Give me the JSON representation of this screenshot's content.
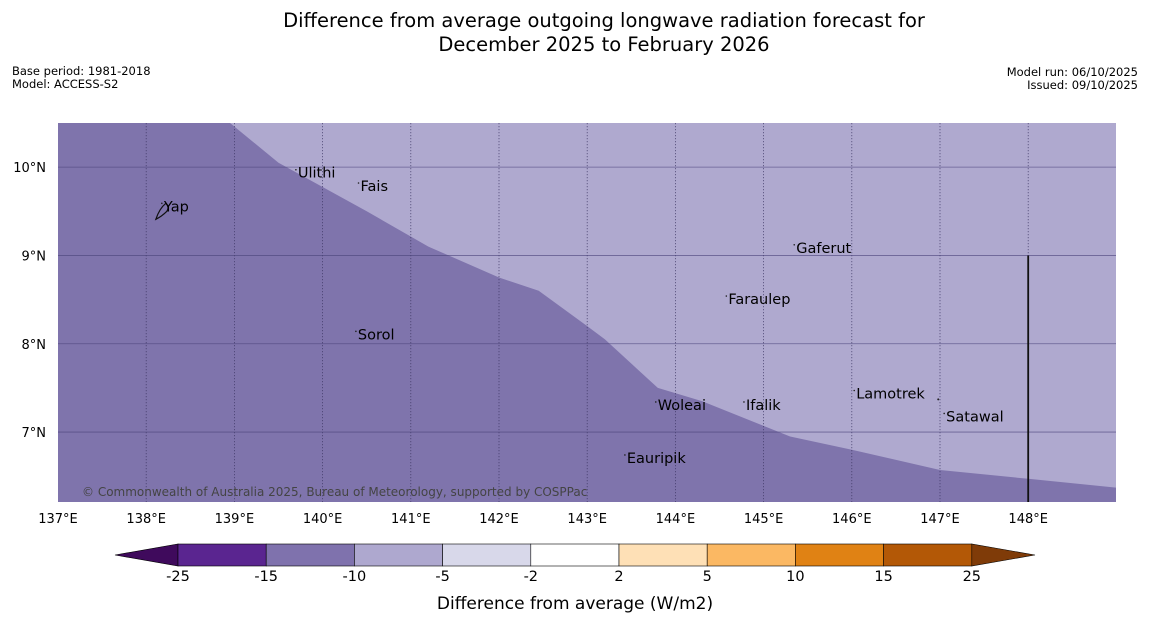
{
  "title_line1": "Difference from average outgoing longwave radiation forecast for",
  "title_line2": "December 2025 to February 2026",
  "base_period": "Base period: 1981-2018",
  "model": "Model: ACCESS-S2",
  "model_run": "Model run: 06/10/2025",
  "issued": "Issued: 09/10/2025",
  "copyright": "© Commonwealth of Australia 2025, Bureau of Meteorology, supported by COSPPac",
  "lon_labels": [
    "137°E",
    "138°E",
    "139°E",
    "140°E",
    "141°E",
    "142°E",
    "143°E",
    "144°E",
    "145°E",
    "146°E",
    "147°E",
    "148°E"
  ],
  "lon_values": [
    137,
    138,
    139,
    140,
    141,
    142,
    143,
    144,
    145,
    146,
    147,
    148
  ],
  "lat_labels": [
    "10°N",
    "9°N",
    "8°N",
    "7°N"
  ],
  "lat_values": [
    10,
    9,
    8,
    7
  ],
  "places": [
    {
      "name": "Ulithi",
      "lon": 139.72,
      "lat": 9.88
    },
    {
      "name": "Fais",
      "lon": 140.43,
      "lat": 9.73
    },
    {
      "name": "Yap",
      "lon": 138.2,
      "lat": 9.5
    },
    {
      "name": "Gaferut",
      "lon": 145.37,
      "lat": 9.03
    },
    {
      "name": "Faraulep",
      "lon": 144.6,
      "lat": 8.45
    },
    {
      "name": "Sorol",
      "lon": 140.4,
      "lat": 8.05
    },
    {
      "name": "Lamotrek",
      "lon": 146.05,
      "lat": 7.38
    },
    {
      "name": "Woleai",
      "lon": 143.8,
      "lat": 7.25
    },
    {
      "name": "Ifalik",
      "lon": 144.8,
      "lat": 7.25
    },
    {
      "name": "Satawal",
      "lon": 147.07,
      "lat": 7.12
    },
    {
      "name": "Eauripik",
      "lon": 143.45,
      "lat": 6.65
    }
  ],
  "colorbar": {
    "colors": [
      "#3f0a5c",
      "#5a2590",
      "#7f72ad",
      "#aea8cf",
      "#d8d8ea",
      "#ffffff",
      "#fee0b6",
      "#fbb863",
      "#e08214",
      "#b35806",
      "#7f3b08"
    ],
    "ticks": [
      "-25",
      "-15",
      "-10",
      "-5",
      "-2",
      "2",
      "5",
      "10",
      "15",
      "25"
    ],
    "label": "Difference from average (W/m2)"
  },
  "field": {
    "dark_color": "#7f74ac",
    "light_color": "#afa9cf",
    "dark_level": "-15 to -10",
    "light_level": "-10 to -5",
    "boundary_points": [
      [
        138.95,
        10.5
      ],
      [
        139.5,
        10.05
      ],
      [
        140.5,
        9.5
      ],
      [
        141.2,
        9.1
      ],
      [
        142.0,
        8.75
      ],
      [
        142.45,
        8.6
      ],
      [
        143.0,
        8.2
      ],
      [
        143.2,
        8.05
      ],
      [
        143.8,
        7.5
      ],
      [
        144.3,
        7.35
      ],
      [
        145.3,
        6.95
      ],
      [
        146.0,
        6.8
      ],
      [
        147.0,
        6.57
      ],
      [
        148.0,
        6.47
      ],
      [
        149.0,
        6.37
      ]
    ],
    "vertical_line_lon": 148.0,
    "vertical_line_lat_top": 9.0
  },
  "map_extent": {
    "lon_min": 137,
    "lon_max": 149,
    "lat_min": 6.2,
    "lat_max": 10.5
  }
}
